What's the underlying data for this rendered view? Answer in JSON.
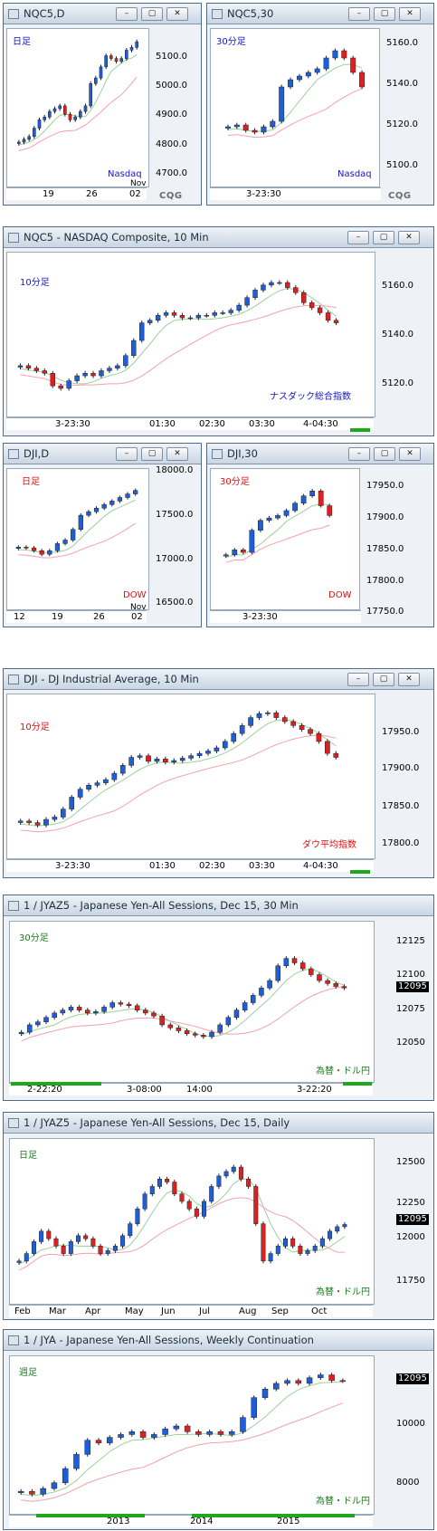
{
  "windows": [
    {
      "id": "nqc5d",
      "title": "NQC5,D",
      "timeframe": "日足",
      "tf_color": "tf",
      "note": "Nasdaq",
      "note_color": "tf",
      "yticks": [
        "5100.0",
        "5000.0",
        "4900.0",
        "4800.0",
        "4700.0"
      ],
      "xticks": [
        "19",
        "26",
        "02"
      ],
      "xsub": "Nov",
      "brand": "CQG"
    },
    {
      "id": "nqc530",
      "title": "NQC5,30",
      "timeframe": "30分足",
      "tf_color": "tf",
      "note": "Nasdaq",
      "note_color": "tf",
      "yticks": [
        "5160.0",
        "5140.0",
        "5120.0",
        "5100.0"
      ],
      "xticks": [
        "3-23:30"
      ],
      "brand": "CQG"
    },
    {
      "id": "nqc510",
      "title": "NQC5 - NASDAQ Composite, 10 Min",
      "timeframe": "10分足",
      "tf_color": "tf",
      "note": "ナスダック総合指数",
      "note_color": "tf",
      "yticks": [
        "5160.0",
        "5140.0",
        "5120.0"
      ],
      "xticks": [
        "3-23:30",
        "01:30",
        "02:30",
        "03:30",
        "4-04:30"
      ]
    },
    {
      "id": "djid",
      "title": "DJI,D",
      "timeframe": "日足",
      "tf_color": "tfr",
      "note": "DOW",
      "note_color": "tfr",
      "yticks": [
        "18000.0",
        "17500.0",
        "17000.0",
        "16500.0"
      ],
      "xticks": [
        "12",
        "19",
        "26",
        "02"
      ],
      "xsub": "Nov"
    },
    {
      "id": "dji30",
      "title": "DJI,30",
      "timeframe": "30分足",
      "tf_color": "tfr",
      "note": "DOW",
      "note_color": "tfr",
      "yticks": [
        "17950.0",
        "17900.0",
        "17850.0",
        "17800.0",
        "17750.0"
      ],
      "xticks": [
        "3-23:30"
      ]
    },
    {
      "id": "dji10",
      "title": "DJI - DJ Industrial Average, 10 Min",
      "timeframe": "10分足",
      "tf_color": "tfr",
      "note": "ダウ平均指数",
      "note_color": "tfr",
      "yticks": [
        "17950.0",
        "17900.0",
        "17850.0",
        "17800.0"
      ],
      "xticks": [
        "3-23:30",
        "01:30",
        "02:30",
        "03:30",
        "4-04:30"
      ]
    },
    {
      "id": "jyaz30",
      "title": "1 / JYAZ5 - Japanese Yen-All Sessions, Dec 15, 30 Min",
      "timeframe": "30分足",
      "tf_color": "tfg",
      "note": "為替・ドル円",
      "note_color": "tfg",
      "yticks": [
        "12125",
        "12100",
        "12075",
        "12050"
      ],
      "price": "12095",
      "xticks": [
        "2-22:20",
        "3-08:00",
        "14:00",
        "3-22:20"
      ]
    },
    {
      "id": "jyazd",
      "title": "1 / JYAZ5 - Japanese Yen-All Sessions, Dec 15, Daily",
      "timeframe": "日足",
      "tf_color": "tfg",
      "note": "為替・ドル円",
      "note_color": "tfg",
      "yticks": [
        "12500",
        "12250",
        "12000",
        "11750"
      ],
      "price": "12095",
      "xticks": [
        "Feb",
        "Mar",
        "Apr",
        "May",
        "Jun",
        "Jul",
        "Aug",
        "Sep",
        "Oct"
      ]
    },
    {
      "id": "jyaw",
      "title": "1 / JYA - Japanese Yen-All Sessions, Weekly Continuation",
      "timeframe": "週足",
      "tf_color": "tfg",
      "note": "為替・ドル円",
      "note_color": "tfg",
      "yticks": [
        "10000",
        "8000"
      ],
      "price": "12095",
      "xticks": [
        "2013",
        "2014",
        "2015"
      ]
    }
  ],
  "buttons": {
    "minimize": "–",
    "restore": "▢",
    "close": "✕"
  },
  "chart_data": [
    {
      "type": "candlestick",
      "title": "NQC5,D",
      "ylim": [
        4650,
        5170
      ],
      "values": [
        4790,
        4800,
        4810,
        4840,
        4870,
        4880,
        4900,
        4910,
        4920,
        4890,
        4870,
        4880,
        4900,
        4920,
        5000,
        5020,
        5060,
        5100,
        5090,
        5080,
        5090,
        5120,
        5130,
        5150
      ]
    },
    {
      "type": "candlestick",
      "title": "NQC5,30",
      "ylim": [
        5090,
        5170
      ],
      "values": [
        5120,
        5121,
        5118,
        5117,
        5120,
        5123,
        5142,
        5146,
        5148,
        5150,
        5152,
        5158,
        5162,
        5158,
        5150,
        5142
      ]
    },
    {
      "type": "candlestick",
      "title": "NQC5 - NASDAQ Composite, 10 Min",
      "ylim": [
        5110,
        5170
      ],
      "values": [
        5128,
        5127,
        5126,
        5125,
        5120,
        5119,
        5122,
        5124,
        5125,
        5124,
        5126,
        5127,
        5128,
        5132,
        5138,
        5145,
        5146,
        5148,
        5149,
        5148,
        5147,
        5147,
        5148,
        5148,
        5149,
        5149,
        5150,
        5152,
        5155,
        5158,
        5160,
        5161,
        5161,
        5159,
        5157,
        5153,
        5151,
        5149,
        5146,
        5145
      ]
    },
    {
      "type": "candlestick",
      "title": "DJI,D",
      "ylim": [
        16300,
        18100
      ],
      "values": [
        17100,
        17090,
        17050,
        17000,
        17050,
        17150,
        17200,
        17350,
        17550,
        17600,
        17650,
        17700,
        17750,
        17800,
        17850,
        17900
      ]
    },
    {
      "type": "candlestick",
      "title": "DJI,30",
      "ylim": [
        17730,
        17990
      ],
      "values": [
        17830,
        17840,
        17835,
        17880,
        17900,
        17905,
        17910,
        17920,
        17935,
        17950,
        17960,
        17930,
        17910
      ]
    },
    {
      "type": "candlestick",
      "title": "DJI - DJ Industrial Average, 10 Min",
      "ylim": [
        17790,
        17980
      ],
      "values": [
        17830,
        17828,
        17825,
        17832,
        17835,
        17845,
        17860,
        17870,
        17875,
        17878,
        17882,
        17890,
        17900,
        17910,
        17912,
        17905,
        17908,
        17904,
        17906,
        17909,
        17912,
        17915,
        17918,
        17922,
        17930,
        17940,
        17950,
        17960,
        17965,
        17966,
        17960,
        17955,
        17950,
        17945,
        17940,
        17930,
        17915,
        17910
      ]
    },
    {
      "type": "candlestick",
      "title": "1 / JYAZ5 - Japanese Yen-All Sessions, Dec 15, 30 Min",
      "ylim": [
        12035,
        12135
      ],
      "values": [
        12065,
        12070,
        12072,
        12075,
        12078,
        12080,
        12082,
        12080,
        12078,
        12079,
        12082,
        12085,
        12084,
        12083,
        12080,
        12078,
        12076,
        12070,
        12068,
        12066,
        12064,
        12063,
        12062,
        12065,
        12070,
        12075,
        12080,
        12085,
        12090,
        12095,
        12100,
        12110,
        12115,
        12112,
        12108,
        12104,
        12100,
        12098,
        12096,
        12095
      ]
    },
    {
      "type": "candlestick",
      "title": "1 / JYAZ5 - Japanese Yen-All Sessions, Dec 15, Daily",
      "ylim": [
        11600,
        12620
      ],
      "values": [
        11850,
        11900,
        11980,
        12050,
        12000,
        11950,
        11900,
        11980,
        12020,
        12000,
        11950,
        11900,
        11920,
        11950,
        12020,
        12100,
        12200,
        12300,
        12350,
        12400,
        12380,
        12300,
        12250,
        12200,
        12150,
        12250,
        12350,
        12420,
        12450,
        12480,
        12400,
        12350,
        12100,
        11850,
        11900,
        11950,
        12000,
        11950,
        11900,
        11920,
        11950,
        12000,
        12050,
        12080,
        12095
      ]
    },
    {
      "type": "candlestick",
      "title": "1 / JYA - Japanese Yen-All Sessions, Weekly Continuation",
      "ylim": [
        7600,
        12700
      ],
      "values": [
        8200,
        8100,
        8300,
        8500,
        9000,
        9500,
        10000,
        9900,
        10100,
        10200,
        10300,
        10100,
        10200,
        10400,
        10500,
        10300,
        10200,
        10300,
        10200,
        10300,
        10800,
        11500,
        11800,
        12000,
        12100,
        12000,
        12200,
        12300,
        12100,
        12095
      ]
    }
  ]
}
